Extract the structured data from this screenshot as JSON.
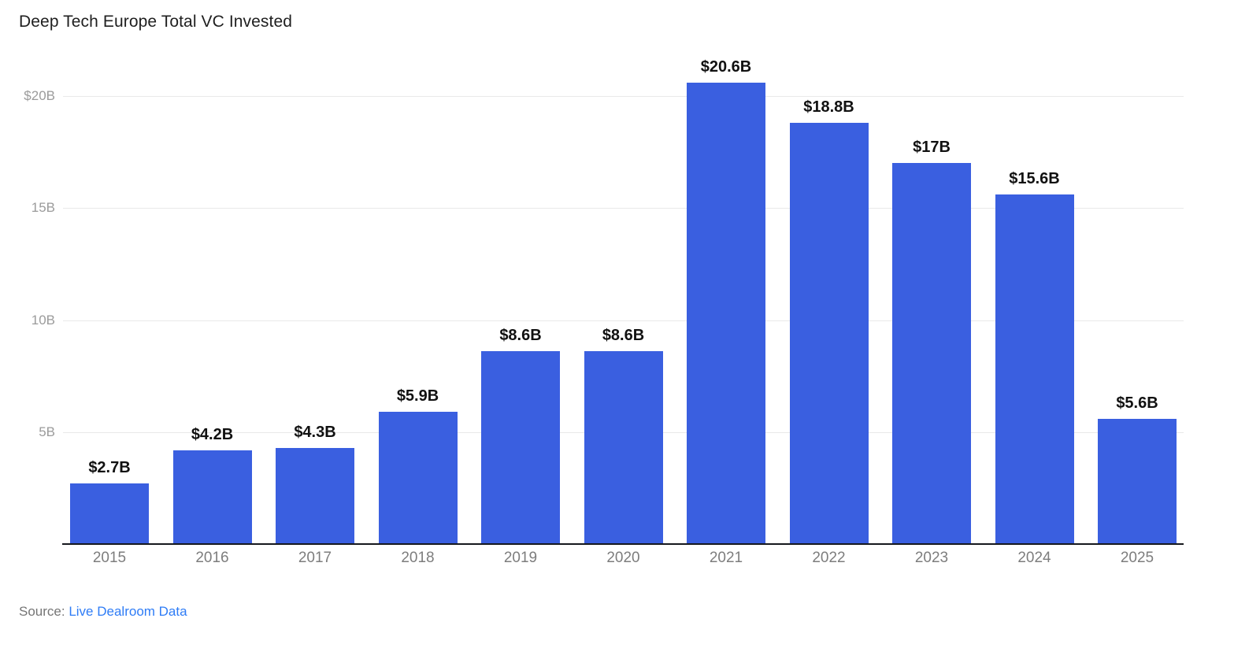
{
  "title": "Deep Tech Europe Total VC Invested",
  "source": {
    "prefix": "Source:",
    "link_label": "Live Dealroom Data"
  },
  "colors": {
    "bar": "#3a5fe0",
    "grid": "#e9e9e9",
    "axis": "#16181d",
    "title_text": "#1f1f1f",
    "value_label": "#111111",
    "tick_label": "#9b9b9b",
    "x_label": "#7d7d7d",
    "source_text": "#757575",
    "link": "#2e7cf6"
  },
  "chart_data": {
    "type": "bar",
    "title": "Deep Tech Europe Total VC Invested",
    "categories": [
      "2015",
      "2016",
      "2017",
      "2018",
      "2019",
      "2020",
      "2021",
      "2022",
      "2023",
      "2024",
      "2025"
    ],
    "values": [
      2.7,
      4.2,
      4.3,
      5.9,
      8.6,
      8.6,
      20.6,
      18.8,
      17,
      15.6,
      5.6
    ],
    "value_labels": [
      "$2.7B",
      "$4.2B",
      "$4.3B",
      "$5.9B",
      "$8.6B",
      "$8.6B",
      "$20.6B",
      "$18.8B",
      "$17B",
      "$15.6B",
      "$5.6B"
    ],
    "unit": "USD billions",
    "xlabel": "",
    "ylabel": "",
    "ylim": [
      0,
      21
    ],
    "grid": true,
    "legend": false,
    "y_ticks": [
      {
        "value": 20,
        "label": "$20B"
      },
      {
        "value": 15,
        "label": "15B"
      },
      {
        "value": 10,
        "label": "10B"
      },
      {
        "value": 5,
        "label": "5B"
      }
    ]
  }
}
